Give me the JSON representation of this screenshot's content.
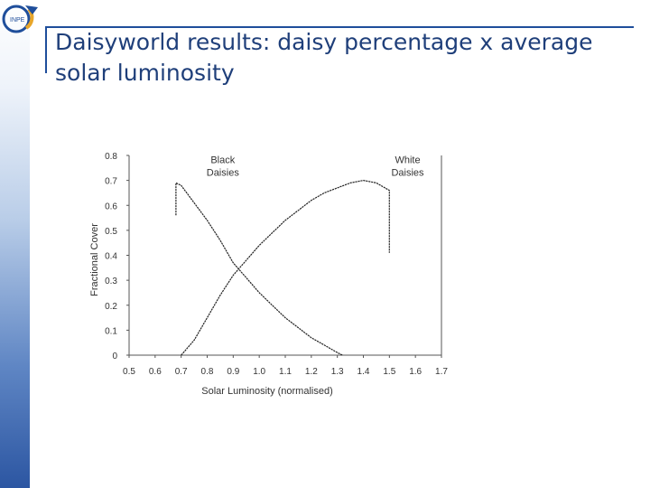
{
  "slide": {
    "title": "Daisyworld results: daisy percentage x average solar luminosity"
  },
  "logo": {
    "text": "INPE",
    "icon": "inpe-logo"
  },
  "colors": {
    "title": "#1f3f7a",
    "accent": "#1f4e9b",
    "curve": "#222222"
  },
  "chart_data": {
    "type": "line",
    "title": "",
    "xlabel": "Solar Luminosity (normalised)",
    "ylabel": "Fractional Cover",
    "xlim": [
      0.5,
      1.7
    ],
    "ylim": [
      0,
      0.8
    ],
    "xticks": [
      "0.5",
      "0.6",
      "0.7",
      "0.8",
      "0.9",
      "1.0",
      "1.1",
      "1.2",
      "1.3",
      "1.4",
      "1.5",
      "1.6",
      "1.7"
    ],
    "yticks": [
      "0",
      "0.1",
      "0.2",
      "0.3",
      "0.4",
      "0.5",
      "0.6",
      "0.7",
      "0.8"
    ],
    "grid": false,
    "series": [
      {
        "name": "Black Daisies",
        "label_lines": [
          "Black",
          "Daisies"
        ],
        "points": [
          [
            0.68,
            0.56
          ],
          [
            0.68,
            0.69
          ],
          [
            0.7,
            0.68
          ],
          [
            0.75,
            0.61
          ],
          [
            0.8,
            0.54
          ],
          [
            0.85,
            0.46
          ],
          [
            0.9,
            0.37
          ],
          [
            0.95,
            0.31
          ],
          [
            1.0,
            0.25
          ],
          [
            1.05,
            0.2
          ],
          [
            1.1,
            0.15
          ],
          [
            1.15,
            0.11
          ],
          [
            1.2,
            0.07
          ],
          [
            1.25,
            0.04
          ],
          [
            1.3,
            0.01
          ],
          [
            1.32,
            0.0
          ]
        ]
      },
      {
        "name": "White Daisies",
        "label_lines": [
          "White",
          "Daisies"
        ],
        "points": [
          [
            0.7,
            0.0
          ],
          [
            0.75,
            0.06
          ],
          [
            0.8,
            0.15
          ],
          [
            0.85,
            0.24
          ],
          [
            0.9,
            0.32
          ],
          [
            0.95,
            0.38
          ],
          [
            1.0,
            0.44
          ],
          [
            1.05,
            0.49
          ],
          [
            1.1,
            0.54
          ],
          [
            1.15,
            0.58
          ],
          [
            1.2,
            0.62
          ],
          [
            1.25,
            0.65
          ],
          [
            1.3,
            0.67
          ],
          [
            1.35,
            0.69
          ],
          [
            1.4,
            0.7
          ],
          [
            1.45,
            0.69
          ],
          [
            1.5,
            0.66
          ],
          [
            1.5,
            0.41
          ]
        ]
      }
    ]
  }
}
